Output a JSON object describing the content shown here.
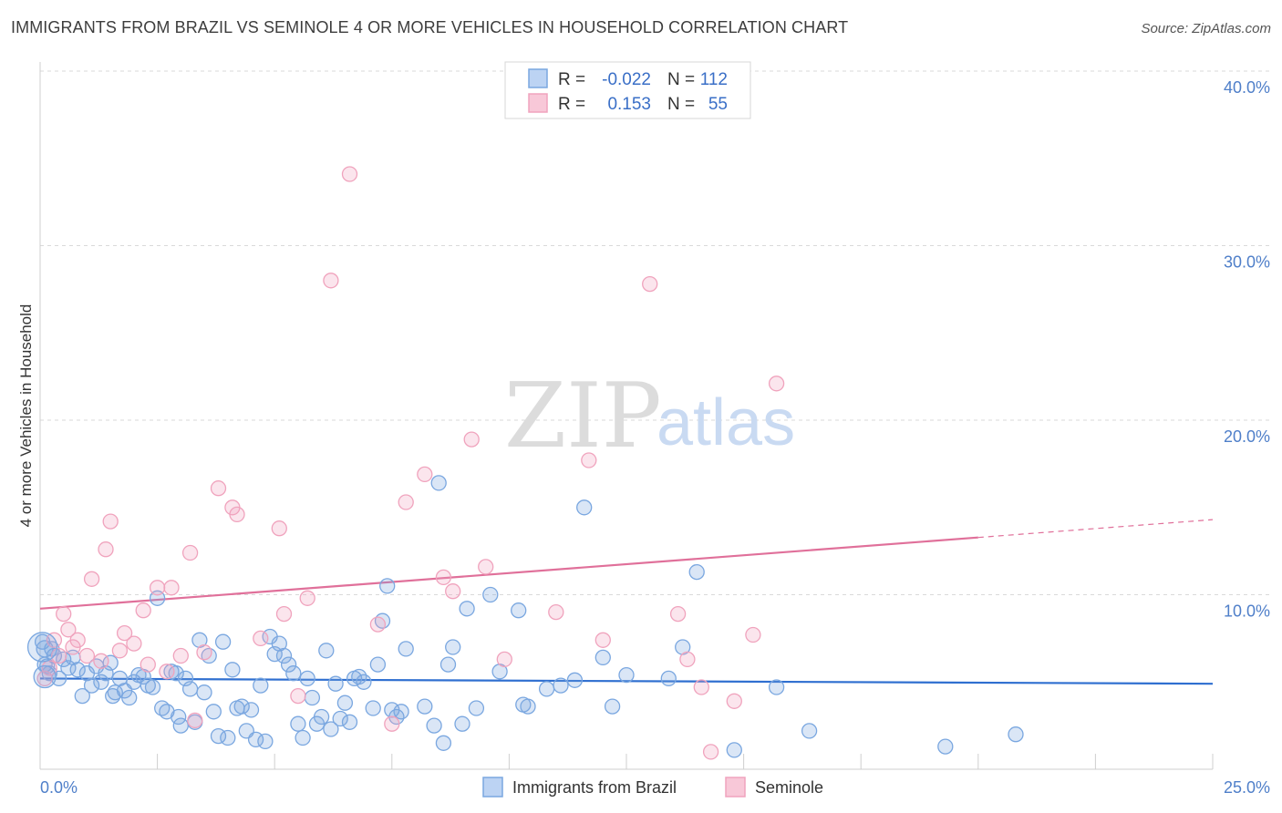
{
  "header": {
    "title": "IMMIGRANTS FROM BRAZIL VS SEMINOLE 4 OR MORE VEHICLES IN HOUSEHOLD CORRELATION CHART",
    "source": "Source: ZipAtlas.com"
  },
  "watermark": {
    "part1": "ZIP",
    "part2": "atlas"
  },
  "legend": {
    "rows": [
      {
        "r_label": "R =",
        "r_value": "-0.022",
        "n_label": "N =",
        "n_value": "112",
        "color": "#7aa7e0"
      },
      {
        "r_label": "R =",
        "r_value": "0.153",
        "n_label": "N =",
        "n_value": "55",
        "color": "#f0a3bd"
      }
    ]
  },
  "chart_data": {
    "type": "scatter",
    "ylabel": "4 or more Vehicles in Household",
    "x_ticks": [
      "0.0%",
      "25.0%"
    ],
    "y_ticks": [
      "10.0%",
      "20.0%",
      "30.0%",
      "40.0%"
    ],
    "xlim": [
      0,
      25
    ],
    "ylim": [
      0,
      40
    ],
    "grid": true,
    "legend_position": "top-center",
    "series": [
      {
        "name": "Immigrants from Brazil",
        "color": "#7aa7e0",
        "trend": {
          "x": [
            0,
            25
          ],
          "y": [
            5.2,
            4.9
          ],
          "solid_until": 25
        },
        "points": [
          [
            0.1,
            6.9
          ],
          [
            0.1,
            6.0
          ],
          [
            0.2,
            5.5
          ],
          [
            0.3,
            6.5
          ],
          [
            0.4,
            5.2
          ],
          [
            0.5,
            6.3
          ],
          [
            0.6,
            5.8
          ],
          [
            0.7,
            6.4
          ],
          [
            0.8,
            5.7
          ],
          [
            0.9,
            4.2
          ],
          [
            1.0,
            5.5
          ],
          [
            1.1,
            4.8
          ],
          [
            1.2,
            5.9
          ],
          [
            1.3,
            5.0
          ],
          [
            1.4,
            5.5
          ],
          [
            1.5,
            6.1
          ],
          [
            1.6,
            4.4
          ],
          [
            1.7,
            5.2
          ],
          [
            1.8,
            4.5
          ],
          [
            1.9,
            4.1
          ],
          [
            2.0,
            5.0
          ],
          [
            2.1,
            5.4
          ],
          [
            2.2,
            5.3
          ],
          [
            2.3,
            4.8
          ],
          [
            2.4,
            4.7
          ],
          [
            2.5,
            9.8
          ],
          [
            2.6,
            3.5
          ],
          [
            2.7,
            3.3
          ],
          [
            2.8,
            5.6
          ],
          [
            2.9,
            5.5
          ],
          [
            3.0,
            2.5
          ],
          [
            3.1,
            5.2
          ],
          [
            3.2,
            4.6
          ],
          [
            3.3,
            2.7
          ],
          [
            3.4,
            7.4
          ],
          [
            3.5,
            4.4
          ],
          [
            3.6,
            6.5
          ],
          [
            3.7,
            3.3
          ],
          [
            3.8,
            1.9
          ],
          [
            3.9,
            7.3
          ],
          [
            4.0,
            1.8
          ],
          [
            4.1,
            5.7
          ],
          [
            4.2,
            3.5
          ],
          [
            4.3,
            3.6
          ],
          [
            4.4,
            2.2
          ],
          [
            4.5,
            3.4
          ],
          [
            4.6,
            1.7
          ],
          [
            4.7,
            4.8
          ],
          [
            4.8,
            1.6
          ],
          [
            4.9,
            7.6
          ],
          [
            5.0,
            6.6
          ],
          [
            5.1,
            7.2
          ],
          [
            5.2,
            6.5
          ],
          [
            5.3,
            6.0
          ],
          [
            5.4,
            5.5
          ],
          [
            5.5,
            2.6
          ],
          [
            5.6,
            1.8
          ],
          [
            5.7,
            5.2
          ],
          [
            5.8,
            4.1
          ],
          [
            5.9,
            2.6
          ],
          [
            6.0,
            3.0
          ],
          [
            6.1,
            6.8
          ],
          [
            6.2,
            2.3
          ],
          [
            6.3,
            4.9
          ],
          [
            6.4,
            2.9
          ],
          [
            6.5,
            3.8
          ],
          [
            6.6,
            2.7
          ],
          [
            6.7,
            5.2
          ],
          [
            6.8,
            5.3
          ],
          [
            6.9,
            5.0
          ],
          [
            7.1,
            3.5
          ],
          [
            7.2,
            6.0
          ],
          [
            7.3,
            8.5
          ],
          [
            7.4,
            10.5
          ],
          [
            7.5,
            3.4
          ],
          [
            7.6,
            3.0
          ],
          [
            7.7,
            3.3
          ],
          [
            7.8,
            6.9
          ],
          [
            8.2,
            3.6
          ],
          [
            8.4,
            2.5
          ],
          [
            8.5,
            16.4
          ],
          [
            8.6,
            1.5
          ],
          [
            8.7,
            6.0
          ],
          [
            8.8,
            7.0
          ],
          [
            9.0,
            2.6
          ],
          [
            9.1,
            9.2
          ],
          [
            9.3,
            3.5
          ],
          [
            9.6,
            10.0
          ],
          [
            9.8,
            5.6
          ],
          [
            10.2,
            9.1
          ],
          [
            10.3,
            3.7
          ],
          [
            10.4,
            3.6
          ],
          [
            10.8,
            4.6
          ],
          [
            11.1,
            4.8
          ],
          [
            11.4,
            5.1
          ],
          [
            11.6,
            15.0
          ],
          [
            12.0,
            6.4
          ],
          [
            12.2,
            3.6
          ],
          [
            12.5,
            5.4
          ],
          [
            13.4,
            5.2
          ],
          [
            13.7,
            7.0
          ],
          [
            14.0,
            11.3
          ],
          [
            14.8,
            1.1
          ],
          [
            15.7,
            4.7
          ],
          [
            16.4,
            2.2
          ],
          [
            19.3,
            1.3
          ],
          [
            20.8,
            2.0
          ],
          [
            0.05,
            7.3
          ],
          [
            0.15,
            5.9
          ],
          [
            0.25,
            6.9
          ],
          [
            1.55,
            4.2
          ],
          [
            2.95,
            3.0
          ]
        ]
      },
      {
        "name": "Seminole",
        "color": "#f0a3bd",
        "trend": {
          "x": [
            0,
            25
          ],
          "y": [
            9.2,
            14.3
          ],
          "solid_until": 20
        },
        "points": [
          [
            0.1,
            5.2
          ],
          [
            0.3,
            7.4
          ],
          [
            0.4,
            6.5
          ],
          [
            0.5,
            8.9
          ],
          [
            0.6,
            8.0
          ],
          [
            0.7,
            7.0
          ],
          [
            0.8,
            7.4
          ],
          [
            1.0,
            6.5
          ],
          [
            1.1,
            10.9
          ],
          [
            1.3,
            6.2
          ],
          [
            1.4,
            12.6
          ],
          [
            1.5,
            14.2
          ],
          [
            1.7,
            6.8
          ],
          [
            1.8,
            7.8
          ],
          [
            2.0,
            7.2
          ],
          [
            2.2,
            9.1
          ],
          [
            2.3,
            6.0
          ],
          [
            2.5,
            10.4
          ],
          [
            2.7,
            5.6
          ],
          [
            2.8,
            10.4
          ],
          [
            3.0,
            6.5
          ],
          [
            3.2,
            12.4
          ],
          [
            3.3,
            2.8
          ],
          [
            3.5,
            6.7
          ],
          [
            3.8,
            16.1
          ],
          [
            4.1,
            15.0
          ],
          [
            4.2,
            14.6
          ],
          [
            4.7,
            7.5
          ],
          [
            5.1,
            13.8
          ],
          [
            5.2,
            8.9
          ],
          [
            5.5,
            4.2
          ],
          [
            5.7,
            9.8
          ],
          [
            6.2,
            28.0
          ],
          [
            6.6,
            34.1
          ],
          [
            7.2,
            8.3
          ],
          [
            7.5,
            2.6
          ],
          [
            7.8,
            15.3
          ],
          [
            8.2,
            16.9
          ],
          [
            8.6,
            11.0
          ],
          [
            8.8,
            10.2
          ],
          [
            9.2,
            18.9
          ],
          [
            9.5,
            11.6
          ],
          [
            9.9,
            6.3
          ],
          [
            11.0,
            9.0
          ],
          [
            11.7,
            17.7
          ],
          [
            12.0,
            7.4
          ],
          [
            13.0,
            27.8
          ],
          [
            13.6,
            8.9
          ],
          [
            13.8,
            6.3
          ],
          [
            14.1,
            4.7
          ],
          [
            14.3,
            1.0
          ],
          [
            15.2,
            7.7
          ],
          [
            15.7,
            22.1
          ],
          [
            14.8,
            3.9
          ],
          [
            0.2,
            5.8
          ]
        ]
      }
    ]
  }
}
